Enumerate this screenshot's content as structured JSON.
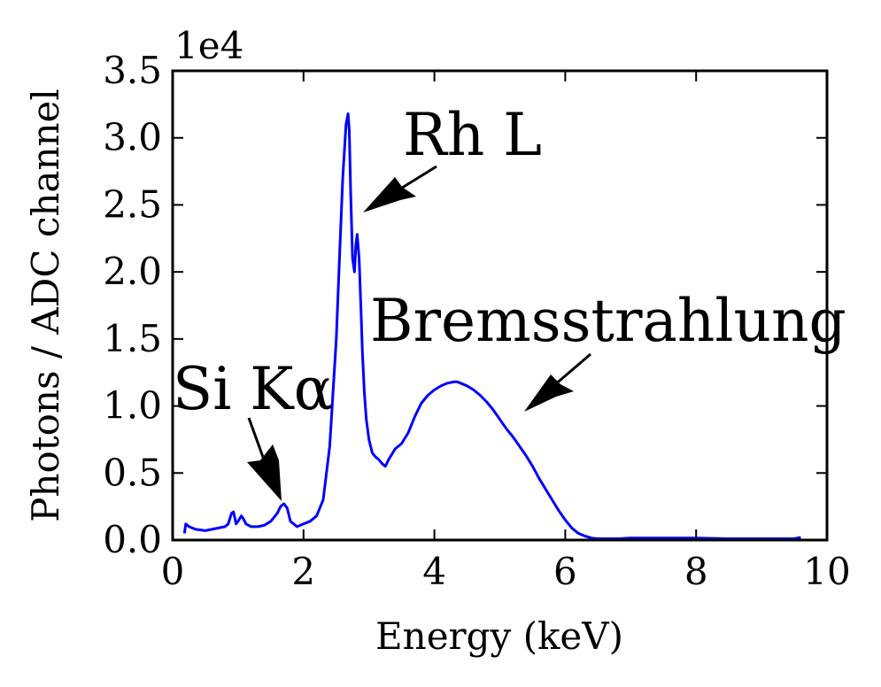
{
  "chart_data": {
    "type": "line",
    "title": "",
    "xlabel": "Energy (keV)",
    "ylabel": "Photons / ADC channel",
    "y_offset_label": "1e4",
    "xlim": [
      0,
      10
    ],
    "ylim": [
      0,
      3.5
    ],
    "x_ticks": [
      0,
      2,
      4,
      6,
      8,
      10
    ],
    "x_tick_labels": [
      "0",
      "2",
      "4",
      "6",
      "8",
      "10"
    ],
    "y_ticks": [
      0.0,
      0.5,
      1.0,
      1.5,
      2.0,
      2.5,
      3.0,
      3.5
    ],
    "y_tick_labels": [
      "0.0",
      "0.5",
      "1.0",
      "1.5",
      "2.0",
      "2.5",
      "3.0",
      "3.5"
    ],
    "grid": false,
    "series": [
      {
        "color": "#0000ff",
        "x": [
          0.18,
          0.2,
          0.25,
          0.35,
          0.5,
          0.6,
          0.7,
          0.8,
          0.85,
          0.9,
          0.93,
          0.97,
          1.0,
          1.05,
          1.08,
          1.12,
          1.2,
          1.3,
          1.4,
          1.5,
          1.6,
          1.65,
          1.7,
          1.75,
          1.8,
          1.9,
          2.0,
          2.1,
          2.2,
          2.3,
          2.4,
          2.5,
          2.55,
          2.6,
          2.65,
          2.68,
          2.7,
          2.72,
          2.75,
          2.78,
          2.8,
          2.82,
          2.85,
          2.88,
          2.9,
          2.93,
          2.96,
          3.0,
          3.05,
          3.1,
          3.15,
          3.2,
          3.25,
          3.3,
          3.4,
          3.5,
          3.6,
          3.7,
          3.8,
          3.9,
          4.0,
          4.1,
          4.2,
          4.3,
          4.35,
          4.4,
          4.5,
          4.6,
          4.7,
          4.8,
          4.9,
          5.0,
          5.1,
          5.2,
          5.3,
          5.4,
          5.5,
          5.6,
          5.7,
          5.8,
          5.9,
          6.0,
          6.1,
          6.2,
          6.3,
          6.4,
          6.5,
          6.6,
          6.8,
          7.0,
          7.5,
          8.0,
          8.5,
          9.0,
          9.5,
          9.6
        ],
        "y": [
          0.05,
          0.12,
          0.1,
          0.08,
          0.07,
          0.08,
          0.09,
          0.1,
          0.12,
          0.2,
          0.21,
          0.12,
          0.14,
          0.18,
          0.16,
          0.12,
          0.1,
          0.1,
          0.11,
          0.14,
          0.2,
          0.25,
          0.27,
          0.24,
          0.14,
          0.1,
          0.12,
          0.14,
          0.18,
          0.3,
          0.7,
          1.5,
          2.1,
          2.7,
          3.1,
          3.18,
          3.05,
          2.6,
          2.1,
          2.0,
          2.2,
          2.28,
          2.1,
          1.7,
          1.4,
          1.1,
          0.9,
          0.75,
          0.65,
          0.62,
          0.6,
          0.57,
          0.55,
          0.6,
          0.68,
          0.72,
          0.8,
          0.92,
          1.02,
          1.08,
          1.12,
          1.15,
          1.17,
          1.18,
          1.18,
          1.17,
          1.15,
          1.12,
          1.08,
          1.03,
          0.97,
          0.9,
          0.83,
          0.77,
          0.7,
          0.63,
          0.55,
          0.46,
          0.38,
          0.3,
          0.22,
          0.15,
          0.09,
          0.05,
          0.03,
          0.015,
          0.01,
          0.01,
          0.01,
          0.015,
          0.015,
          0.015,
          0.01,
          0.01,
          0.01,
          0.02
        ]
      }
    ],
    "annotations": [
      {
        "text": "Rh L",
        "point_at": [
          2.9,
          2.45
        ]
      },
      {
        "text": "Bremsstrahlung",
        "point_at": [
          5.35,
          0.97
        ]
      },
      {
        "text": "Si Kα",
        "point_at": [
          1.72,
          0.28
        ]
      }
    ]
  }
}
